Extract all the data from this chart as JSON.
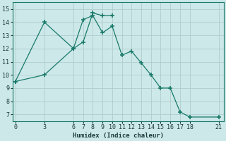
{
  "xlabel": "Humidex (Indice chaleur)",
  "bg_color": "#cce8e8",
  "grid_color": "#b0cccc",
  "line_color": "#1a7a6a",
  "line1_x": [
    0,
    3,
    6,
    7,
    8,
    9,
    10,
    11,
    12,
    13,
    14,
    15,
    16,
    17,
    18,
    21
  ],
  "line1_y": [
    9.5,
    14.0,
    12.0,
    14.2,
    14.5,
    13.2,
    13.7,
    11.5,
    11.8,
    10.9,
    10.0,
    9.0,
    9.0,
    7.2,
    6.8,
    6.8
  ],
  "line2_x": [
    0,
    3,
    6,
    7,
    8,
    9,
    10
  ],
  "line2_y": [
    9.5,
    10.0,
    12.0,
    12.5,
    14.7,
    14.5,
    14.5
  ],
  "xticks": [
    0,
    3,
    6,
    7,
    8,
    9,
    10,
    11,
    12,
    13,
    14,
    15,
    16,
    17,
    18,
    21
  ],
  "yticks": [
    7,
    8,
    9,
    10,
    11,
    12,
    13,
    14,
    15
  ],
  "xlim": [
    -0.3,
    21.5
  ],
  "ylim": [
    6.5,
    15.5
  ],
  "tick_fontsize": 6,
  "xlabel_fontsize": 6.5
}
